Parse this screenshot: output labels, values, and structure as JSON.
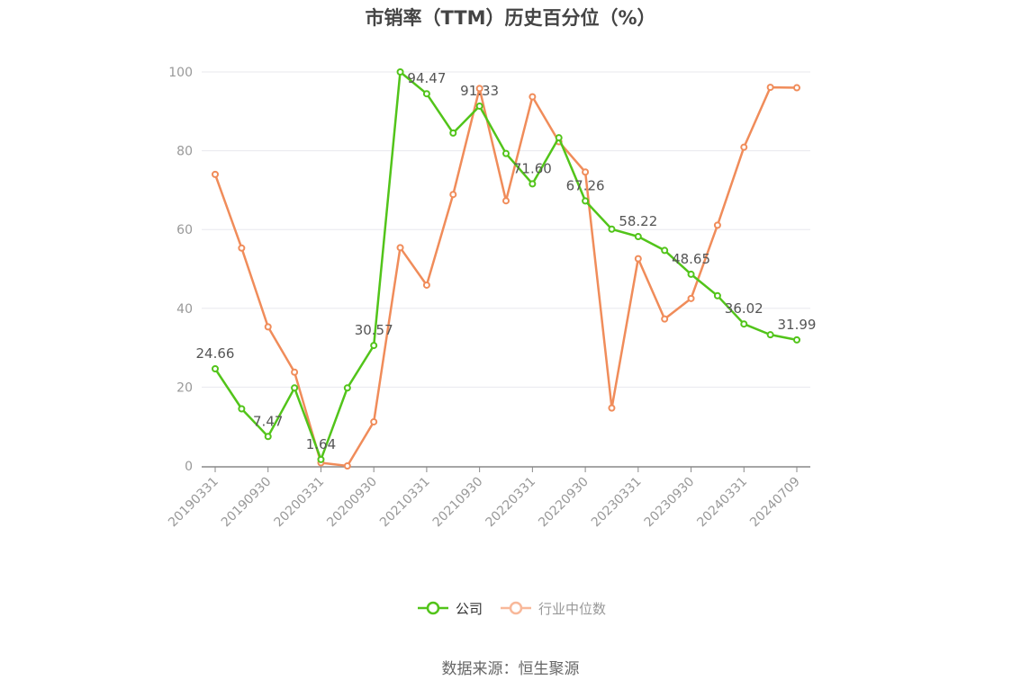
{
  "title": "市销率（TTM）历史百分位（%）",
  "source": "数据来源：恒生聚源",
  "colors": {
    "company": "#52c41a",
    "industry": "#f08c5a",
    "industry_legend": "#f8b89a",
    "axis": "#999999",
    "grid": "#e8e8ee"
  },
  "chart_data": {
    "type": "line",
    "title": "市销率（TTM）历史百分位（%）",
    "x_tick_labels": [
      "20190331",
      "20190930",
      "20200331",
      "20200930",
      "20210331",
      "20210930",
      "20220331",
      "20220930",
      "20230331",
      "20230930",
      "20240331",
      "20240709"
    ],
    "y_ticks": [
      0,
      20,
      40,
      60,
      80,
      100
    ],
    "ylim": [
      0,
      100
    ],
    "grid": true,
    "legend_position": "bottom-center",
    "series": [
      {
        "name": "公司",
        "values": [
          24.66,
          14.5,
          7.47,
          19.8,
          1.64,
          19.8,
          30.57,
          100,
          94.47,
          84.5,
          91.33,
          79.3,
          71.6,
          83.3,
          67.26,
          60.1,
          58.22,
          54.7,
          48.65,
          43.2,
          36.02,
          33.3,
          31.99
        ],
        "labels": [
          "24.66",
          "",
          "7.47",
          "",
          "1.64",
          "",
          "30.57",
          "",
          "94.47",
          "",
          "91.33",
          "",
          "71.60",
          "",
          "67.26",
          "",
          "58.22",
          "",
          "48.65",
          "",
          "36.02",
          "",
          "31.99"
        ]
      },
      {
        "name": "行业中位数",
        "values": [
          74,
          55.3,
          35.3,
          23.8,
          0.8,
          0,
          11.2,
          55.4,
          45.9,
          68.9,
          95.8,
          67.3,
          93.7,
          82.3,
          74.6,
          14.7,
          52.6,
          37.3,
          42.5,
          61.1,
          80.9,
          96.1,
          96
        ]
      }
    ]
  }
}
